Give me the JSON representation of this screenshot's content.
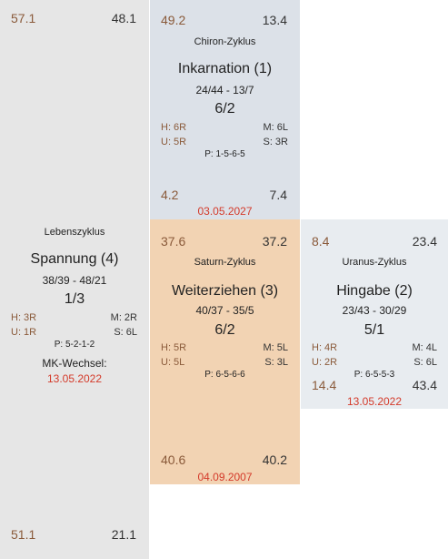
{
  "life": {
    "top_left": "57.1",
    "top_right": "48.1",
    "cycle": "Lebenszyklus",
    "name": "Spannung (4)",
    "range": "38/39 - 48/21",
    "fraction": "1/3",
    "h": "H: 3R",
    "m": "M: 2R",
    "u": "U: 1R",
    "s": "S: 6L",
    "p": "P: 5-2-1-2",
    "mk_label": "MK-Wechsel:",
    "mk_date": "13.05.2022",
    "bottom_left": "51.1",
    "bottom_right": "21.1"
  },
  "chiron": {
    "top_left": "49.2",
    "top_right": "13.4",
    "cycle": "Chiron-Zyklus",
    "name": "Inkarnation (1)",
    "range": "24/44 - 13/7",
    "fraction": "6/2",
    "h": "H: 6R",
    "m": "M: 6L",
    "u": "U: 5R",
    "s": "S: 3R",
    "p": "P: 1-5-6-5",
    "bottom_left": "4.2",
    "bottom_right": "7.4",
    "date": "03.05.2027"
  },
  "saturn": {
    "top_left": "37.6",
    "top_right": "37.2",
    "cycle": "Saturn-Zyklus",
    "name": "Weiterziehen (3)",
    "range": "40/37 - 35/5",
    "fraction": "6/2",
    "h": "H: 5R",
    "m": "M: 5L",
    "u": "U: 5L",
    "s": "S: 3L",
    "p": "P: 6-5-6-6",
    "bottom_left": "40.6",
    "bottom_right": "40.2",
    "date": "04.09.2007"
  },
  "uranus": {
    "top_left": "8.4",
    "top_right": "23.4",
    "cycle": "Uranus-Zyklus",
    "name": "Hingabe (2)",
    "range": "23/43 - 30/29",
    "fraction": "5/1",
    "h": "H: 4R",
    "m": "M: 4L",
    "u": "U: 2R",
    "s": "S: 6L",
    "p": "P: 6-5-5-3",
    "bottom_left": "14.4",
    "bottom_right": "43.4",
    "date": "13.05.2022"
  },
  "colors": {
    "life_bg": "#e6e6e6",
    "chiron_bg": "#dce1e8",
    "saturn_bg": "#f2d3b3",
    "uranus_bg": "#e8ecf0",
    "date_red": "#d43a2a",
    "number_brown": "#8a5a3a"
  }
}
